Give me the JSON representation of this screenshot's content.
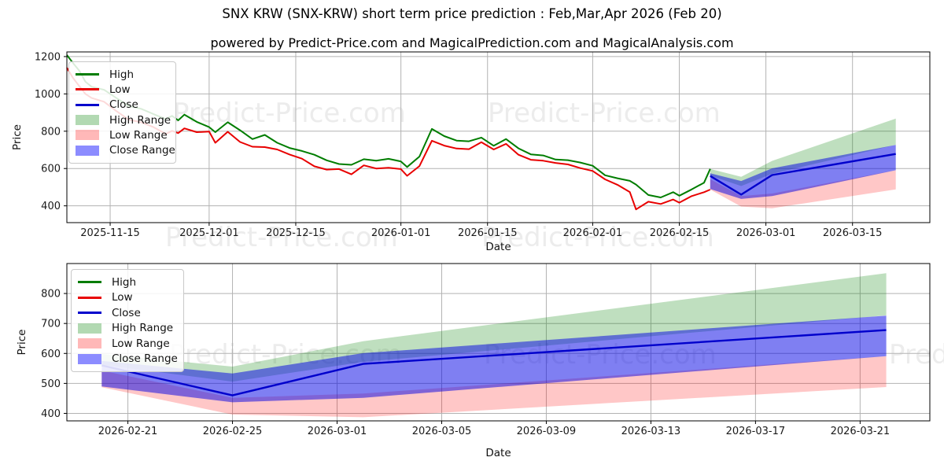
{
  "page": {
    "title": "SNX KRW (SNX-KRW) short term price prediction : Feb,Mar,Apr 2026 (Feb 20)",
    "subtitle": "powered by Predict-Price.com and MagicalPrediction.com and MagicalAnalysis.com"
  },
  "watermark": {
    "text": "Predict-Price.com",
    "color": "#ececec"
  },
  "colors": {
    "high_line": "#007d00",
    "low_line": "#e80000",
    "close_line": "#0000cc",
    "high_band": "rgba(0,128,0,0.25)",
    "low_band": "rgba(255,0,0,0.22)",
    "close_band": "rgba(0,0,230,0.5)",
    "grid": "#b3b3b3",
    "axis": "#000000",
    "tick_text": "#1a1a1a"
  },
  "legend": {
    "items": [
      {
        "label": "High",
        "swatch": "line",
        "color": "#007d00"
      },
      {
        "label": "Low",
        "swatch": "line",
        "color": "#e80000"
      },
      {
        "label": "Close",
        "swatch": "line",
        "color": "#0000cc"
      },
      {
        "label": "High Range",
        "swatch": "patch",
        "color": "rgba(0,128,0,0.3)"
      },
      {
        "label": "Low Range",
        "swatch": "patch",
        "color": "rgba(255,0,0,0.28)"
      },
      {
        "label": "Close Range",
        "swatch": "patch",
        "color": "rgba(0,0,255,0.45)"
      }
    ]
  },
  "chart_data": [
    {
      "type": "line",
      "name": "history-with-forecast",
      "xlabel": "Date",
      "ylabel": "Price",
      "ylim": [
        310,
        1225
      ],
      "xdomain": [
        "2025-11-08",
        "2026-03-27T12:00"
      ],
      "yticks": [
        400,
        600,
        800,
        1000,
        1200
      ],
      "xticks": [
        "2025-11-15",
        "2025-12-01",
        "2025-12-15",
        "2026-01-01",
        "2026-01-15",
        "2026-02-01",
        "2026-02-15",
        "2026-03-01",
        "2026-03-15"
      ],
      "grid": true,
      "legend_position": "upper-left",
      "history": {
        "columns": [
          "date",
          "high",
          "low"
        ],
        "rows": [
          [
            "2025-11-08",
            1208,
            1140
          ],
          [
            "2025-11-09",
            1165,
            1085
          ],
          [
            "2025-11-10",
            1125,
            1042
          ],
          [
            "2025-11-11",
            1065,
            1000
          ],
          [
            "2025-11-12",
            1038,
            978
          ],
          [
            "2025-11-14",
            1022,
            958
          ],
          [
            "2025-11-16",
            978,
            908
          ],
          [
            "2025-11-18",
            935,
            862
          ],
          [
            "2025-11-20",
            920,
            848
          ],
          [
            "2025-11-22",
            892,
            822
          ],
          [
            "2025-11-24",
            865,
            785
          ],
          [
            "2025-11-25",
            882,
            802
          ],
          [
            "2025-11-26",
            858,
            790
          ],
          [
            "2025-11-27",
            889,
            815
          ],
          [
            "2025-11-29",
            850,
            795
          ],
          [
            "2025-12-01",
            822,
            798
          ],
          [
            "2025-12-02",
            795,
            738
          ],
          [
            "2025-12-04",
            848,
            797
          ],
          [
            "2025-12-06",
            805,
            742
          ],
          [
            "2025-12-08",
            758,
            717
          ],
          [
            "2025-12-10",
            780,
            715
          ],
          [
            "2025-12-12",
            738,
            702
          ],
          [
            "2025-12-14",
            710,
            675
          ],
          [
            "2025-12-16",
            694,
            653
          ],
          [
            "2025-12-18",
            674,
            612
          ],
          [
            "2025-12-20",
            644,
            594
          ],
          [
            "2025-12-22",
            624,
            597
          ],
          [
            "2025-12-24",
            620,
            569
          ],
          [
            "2025-12-26",
            650,
            617
          ],
          [
            "2025-12-28",
            642,
            600
          ],
          [
            "2025-12-30",
            652,
            604
          ],
          [
            "2026-01-01",
            638,
            597
          ],
          [
            "2026-01-02",
            608,
            561
          ],
          [
            "2026-01-04",
            664,
            613
          ],
          [
            "2026-01-06",
            812,
            749
          ],
          [
            "2026-01-08",
            774,
            723
          ],
          [
            "2026-01-10",
            750,
            707
          ],
          [
            "2026-01-12",
            746,
            704
          ],
          [
            "2026-01-14",
            766,
            741
          ],
          [
            "2026-01-16",
            722,
            702
          ],
          [
            "2026-01-18",
            758,
            732
          ],
          [
            "2026-01-20",
            708,
            674
          ],
          [
            "2026-01-22",
            676,
            647
          ],
          [
            "2026-01-24",
            670,
            642
          ],
          [
            "2026-01-26",
            648,
            630
          ],
          [
            "2026-01-28",
            645,
            622
          ],
          [
            "2026-01-30",
            632,
            602
          ],
          [
            "2026-02-01",
            615,
            587
          ],
          [
            "2026-02-03",
            564,
            542
          ],
          [
            "2026-02-05",
            548,
            513
          ],
          [
            "2026-02-07",
            534,
            474
          ],
          [
            "2026-02-08",
            514,
            381
          ],
          [
            "2026-02-10",
            458,
            422
          ],
          [
            "2026-02-12",
            445,
            410
          ],
          [
            "2026-02-14",
            473,
            434
          ],
          [
            "2026-02-15",
            454,
            417
          ],
          [
            "2026-02-17",
            488,
            452
          ],
          [
            "2026-02-19",
            524,
            473
          ],
          [
            "2026-02-20",
            598,
            487
          ]
        ]
      },
      "forecast": {
        "dates": [
          "2026-02-20",
          "2026-02-25",
          "2026-03-02",
          "2026-03-22"
        ],
        "close": [
          560,
          460,
          565,
          678
        ],
        "close_upper": [
          575,
          533,
          601,
          726
        ],
        "close_lower": [
          490,
          437,
          452,
          591
        ],
        "high_upper": [
          598,
          556,
          641,
          868
        ],
        "high_lower": [
          562,
          506,
          572,
          727
        ],
        "low_upper": [
          543,
          452,
          466,
          591
        ],
        "low_lower": [
          487,
          396,
          387,
          488
        ]
      }
    },
    {
      "type": "line",
      "name": "forecast-zoom",
      "xlabel": "Date",
      "ylabel": "Price",
      "ylim": [
        375,
        900
      ],
      "xdomain": [
        "2026-02-18T16:00",
        "2026-03-23T16:00"
      ],
      "yticks": [
        400,
        500,
        600,
        700,
        800
      ],
      "xticks": [
        "2026-02-21",
        "2026-02-25",
        "2026-03-01",
        "2026-03-05",
        "2026-03-09",
        "2026-03-13",
        "2026-03-17",
        "2026-03-21"
      ],
      "grid": true,
      "legend_position": "upper-left",
      "forecast": {
        "dates": [
          "2026-02-20",
          "2026-02-25",
          "2026-03-02",
          "2026-03-22"
        ],
        "close": [
          560,
          460,
          565,
          678
        ],
        "close_upper": [
          575,
          533,
          601,
          726
        ],
        "close_lower": [
          490,
          437,
          452,
          591
        ],
        "high_upper": [
          598,
          556,
          641,
          868
        ],
        "high_lower": [
          562,
          506,
          572,
          727
        ],
        "low_upper": [
          543,
          452,
          466,
          591
        ],
        "low_lower": [
          487,
          396,
          387,
          488
        ]
      }
    }
  ]
}
